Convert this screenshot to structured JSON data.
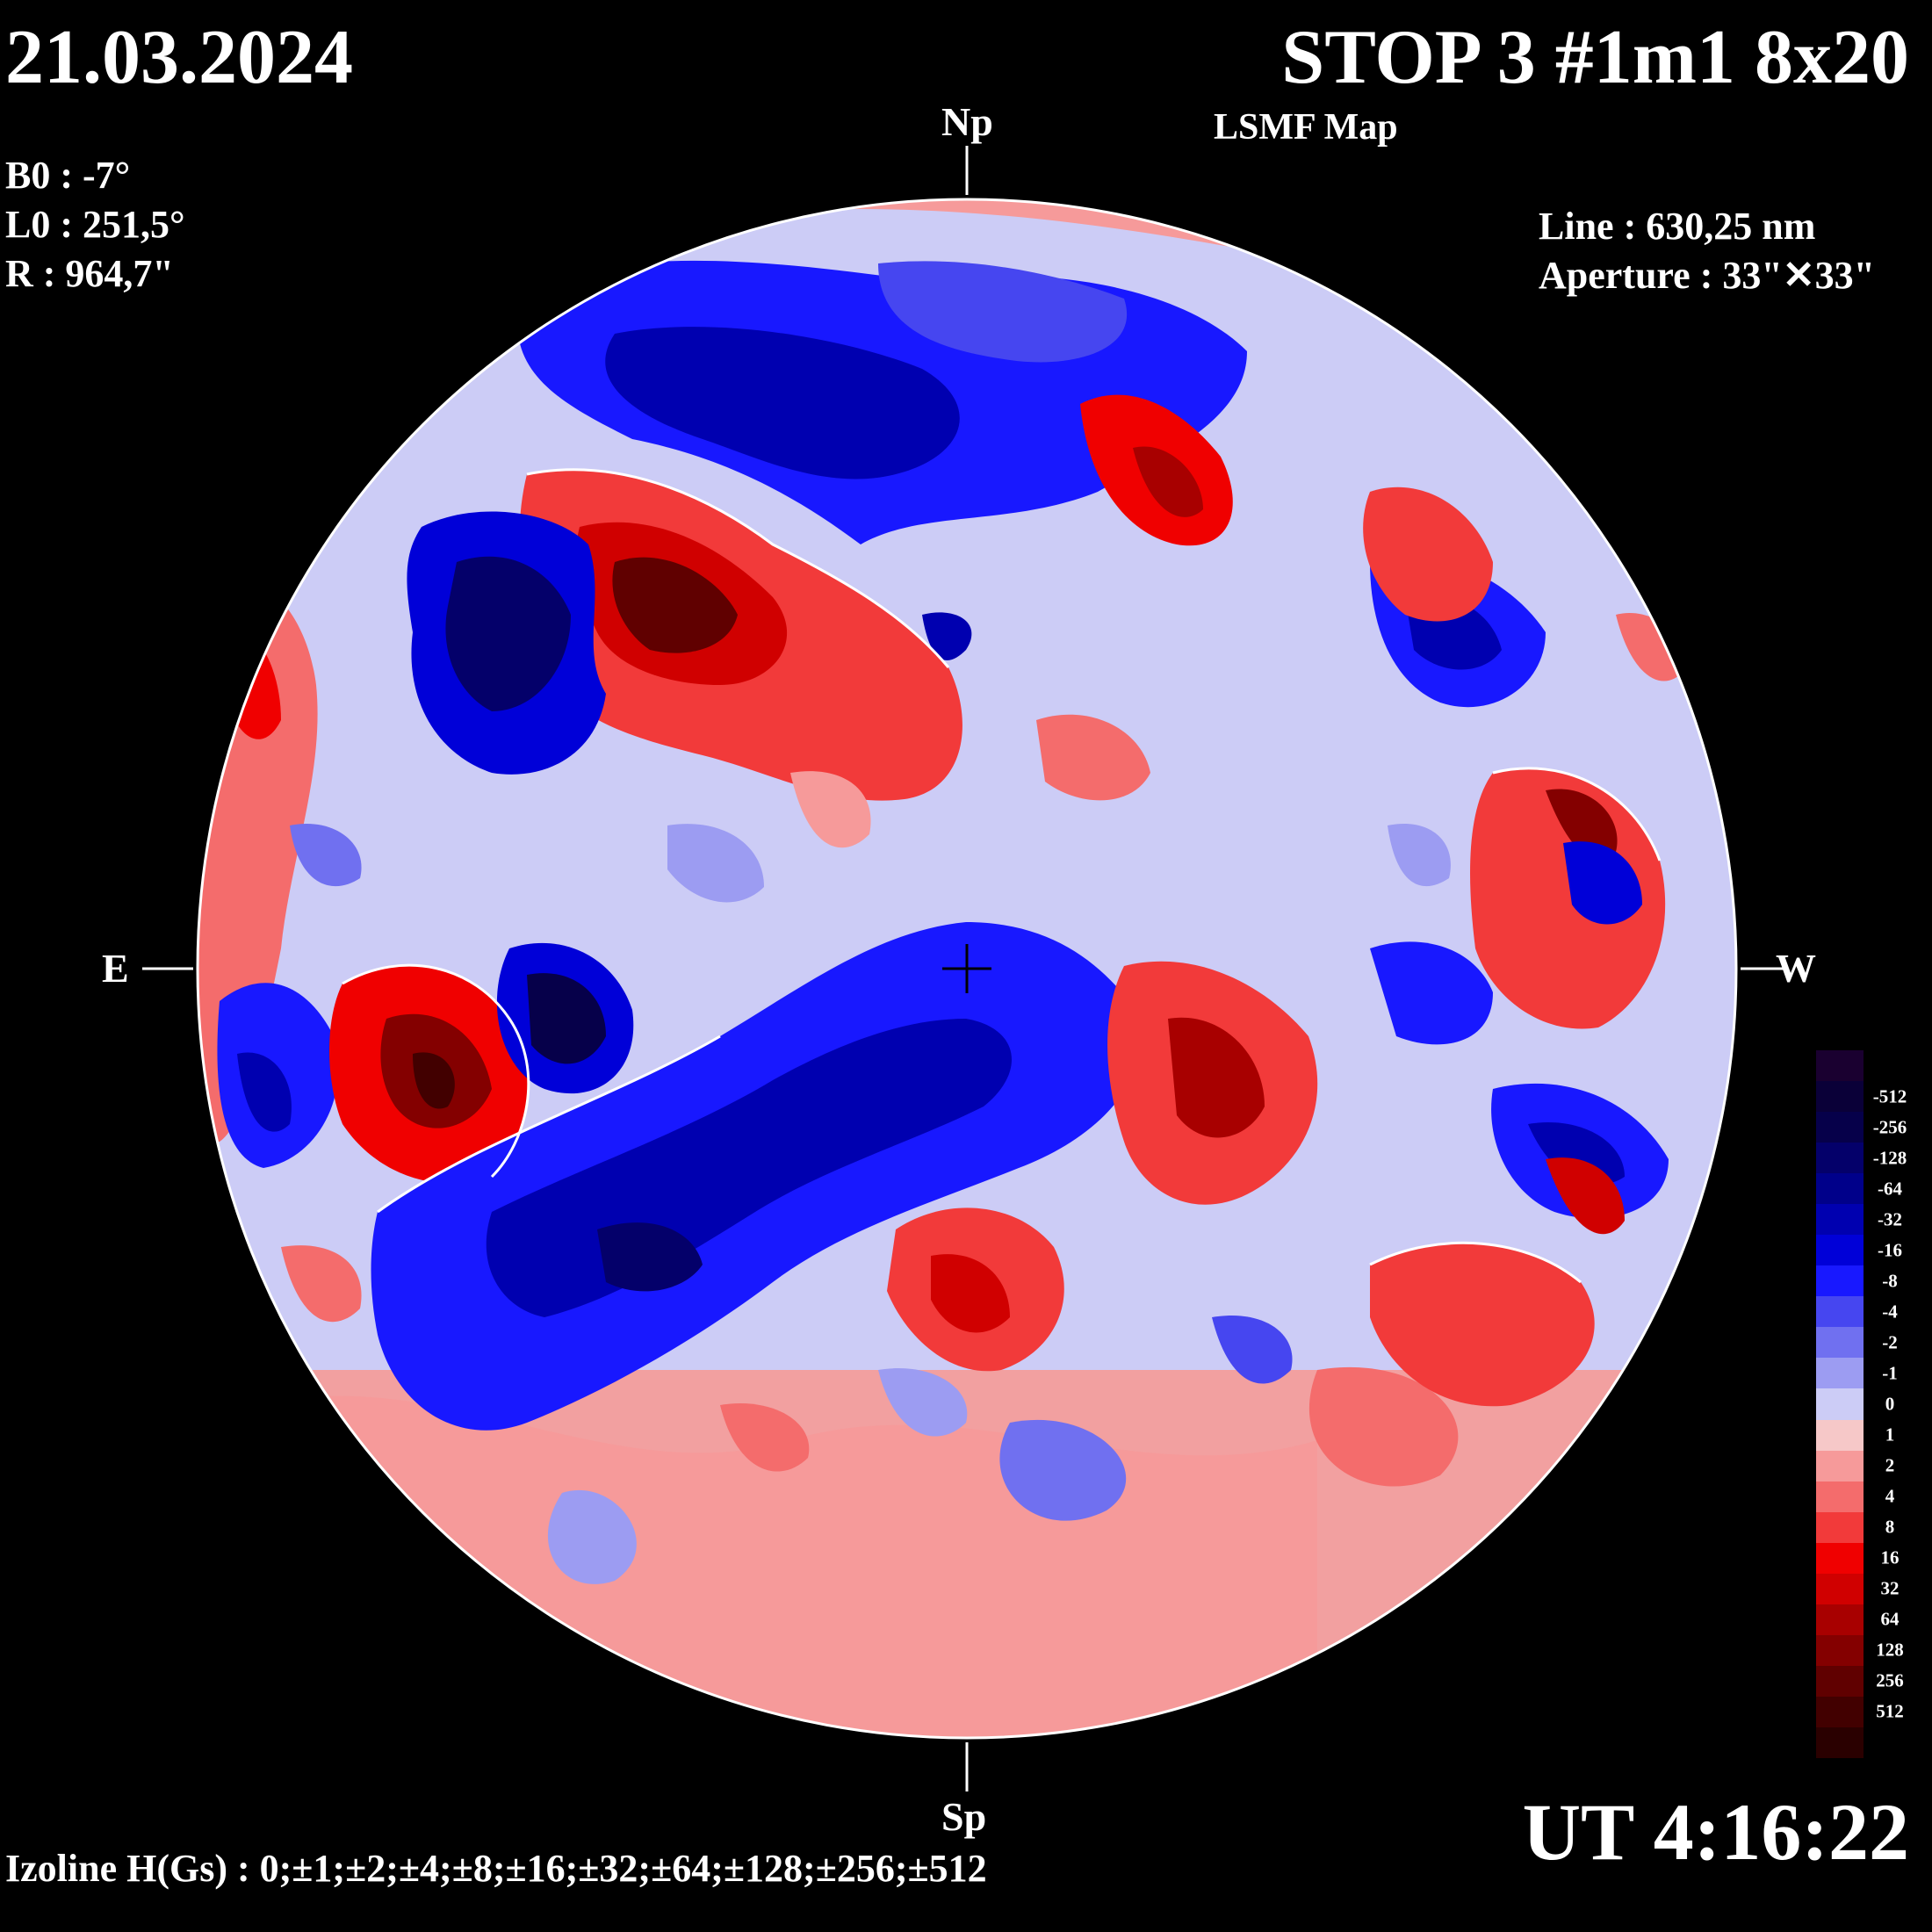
{
  "header": {
    "date": "21.03.2024",
    "title": "STOP 3 #1m1 8x20",
    "subtitle": "LSMF  Map"
  },
  "parameters": [
    "B0 : -7°",
    "L0 : 251,5°",
    "R  : 964,7\""
  ],
  "instrument": {
    "line": "Line :  630,25 nm",
    "aperture": "Aperture : 33\"✕33\""
  },
  "directions": {
    "north": "Np",
    "south": "Sp",
    "east": "E",
    "west": "W"
  },
  "time": "UT 4:16:22",
  "izoline": "Izoline H(Gs) : 0;±1;±2;±4;±8;±16;±32;±64;±128;±256;±512",
  "legend": [
    {
      "label": "",
      "color": "#1a0030"
    },
    {
      "label": "-512",
      "color": "#0a0038"
    },
    {
      "label": "-256",
      "color": "#06004a"
    },
    {
      "label": "-128",
      "color": "#04006a"
    },
    {
      "label": "-64",
      "color": "#00008a"
    },
    {
      "label": "-32",
      "color": "#0000b0"
    },
    {
      "label": "-16",
      "color": "#0000d8"
    },
    {
      "label": "-8",
      "color": "#1818ff"
    },
    {
      "label": "-4",
      "color": "#4646f0"
    },
    {
      "label": "-2",
      "color": "#7070f0"
    },
    {
      "label": "-1",
      "color": "#9c9cf2"
    },
    {
      "label": "0",
      "color": "#ccccf6"
    },
    {
      "label": "1",
      "color": "#f6c8c8"
    },
    {
      "label": "2",
      "color": "#f69a9a"
    },
    {
      "label": "4",
      "color": "#f46c6c"
    },
    {
      "label": "8",
      "color": "#f23a3a"
    },
    {
      "label": "16",
      "color": "#f00000"
    },
    {
      "label": "32",
      "color": "#d00000"
    },
    {
      "label": "64",
      "color": "#a80000"
    },
    {
      "label": "128",
      "color": "#840000"
    },
    {
      "label": "256",
      "color": "#600000"
    },
    {
      "label": "512",
      "color": "#420000"
    },
    {
      "label": "",
      "color": "#2a0000"
    }
  ]
}
